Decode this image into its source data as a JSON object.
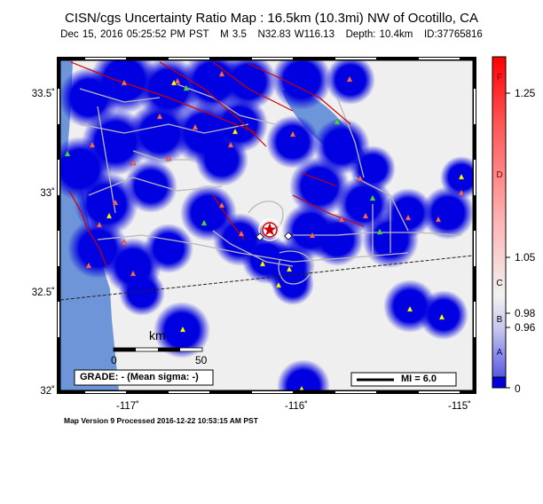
{
  "header": {
    "title": "CISN/cgs Uncertainty Ratio Map : 16.5km (10.3mi) NW of Ocotillo, CA",
    "date": "Dec 15, 2016 05:25:52 PM PST",
    "magnitude": "M 3.5",
    "location": "N32.83 W116.13",
    "depth": "Depth: 10.4km",
    "event_id": "ID:37765816"
  },
  "axes": {
    "lat_labels": [
      "33.5˚",
      "33˚",
      "32.5˚",
      "32˚"
    ],
    "lon_labels": [
      "-117˚",
      "-116˚",
      "-115˚"
    ]
  },
  "scale_bar": {
    "unit": "km",
    "start": "0",
    "end": "50"
  },
  "grade_box": "GRADE: - (Mean sigma: -)",
  "mi_legend": "MI = 6.0",
  "colorbar": {
    "value_labels": [
      "1.25",
      "1.05",
      "0.98",
      "0.96",
      "0"
    ],
    "grade_letters": [
      "F",
      "D",
      "C",
      "B",
      "A"
    ],
    "colors": {
      "top": "#ff0000",
      "mid": "#f2f2f2",
      "bottom": "#0000dd"
    }
  },
  "footer": "Map Version 9 Processed 2016-12-22 10:53:15 AM PST",
  "colors": {
    "ocean": "#6f95d9",
    "land": "#efefef",
    "station_blob": "#0000e0",
    "road": "#b9b9b9",
    "fault": "#cc0000"
  }
}
